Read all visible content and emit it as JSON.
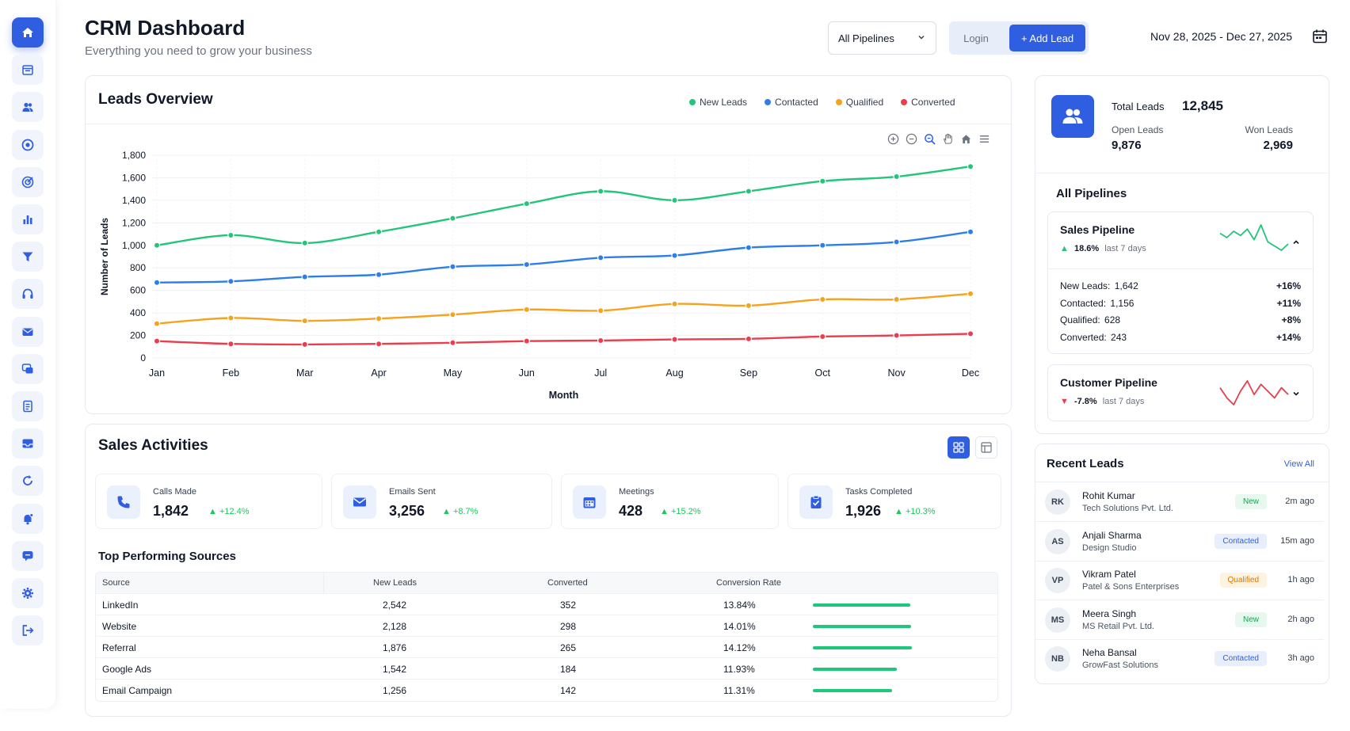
{
  "header": {
    "title": "CRM Dashboard",
    "subtitle": "Everything you need to grow your business",
    "pipeline_select": "All Pipelines",
    "login_label": "Login",
    "add_lead_label": "+ Add Lead",
    "date_range": "Nov 28, 2025 - Dec 27, 2025"
  },
  "sidebar": {
    "items": [
      {
        "icon": "home-icon",
        "active": true
      },
      {
        "icon": "calendar-icon"
      },
      {
        "icon": "users-icon"
      },
      {
        "icon": "target-icon"
      },
      {
        "icon": "goal-icon"
      },
      {
        "icon": "bar-chart-icon"
      },
      {
        "icon": "filter-icon"
      },
      {
        "icon": "support-icon"
      },
      {
        "icon": "mail-icon"
      },
      {
        "icon": "chat-icon"
      },
      {
        "icon": "document-icon"
      },
      {
        "icon": "inbox-icon"
      },
      {
        "icon": "refresh-icon"
      },
      {
        "icon": "notification-icon"
      },
      {
        "icon": "message-icon"
      },
      {
        "icon": "settings-icon"
      },
      {
        "icon": "logout-icon"
      }
    ]
  },
  "leads_overview": {
    "title": "Leads Overview",
    "legend": [
      "New Leads",
      "Contacted",
      "Qualified",
      "Converted"
    ]
  },
  "chart_data": {
    "type": "line",
    "title": "Leads Overview",
    "xlabel": "Month",
    "ylabel": "Number of Leads",
    "categories": [
      "Jan",
      "Feb",
      "Mar",
      "Apr",
      "May",
      "Jun",
      "Jul",
      "Aug",
      "Sep",
      "Oct",
      "Nov",
      "Dec"
    ],
    "yticks": [
      "0",
      "200",
      "400",
      "600",
      "800",
      "1,000",
      "1,200",
      "1,400",
      "1,600",
      "1,800"
    ],
    "ylim": [
      0,
      1800
    ],
    "grid": true,
    "legend_position": "top-right",
    "series": [
      {
        "name": "New Leads",
        "color": "#22c57a",
        "values": [
          1000,
          1090,
          1020,
          1120,
          1240,
          1370,
          1480,
          1400,
          1480,
          1570,
          1610,
          1700
        ]
      },
      {
        "name": "Contacted",
        "color": "#2d7fe8",
        "values": [
          670,
          680,
          720,
          740,
          810,
          830,
          890,
          910,
          980,
          1000,
          1030,
          1120
        ]
      },
      {
        "name": "Qualified",
        "color": "#f5a31f",
        "values": [
          305,
          355,
          330,
          350,
          385,
          430,
          420,
          480,
          465,
          520,
          520,
          570
        ]
      },
      {
        "name": "Converted",
        "color": "#ea3d4d",
        "values": [
          150,
          125,
          120,
          125,
          135,
          150,
          155,
          165,
          170,
          190,
          200,
          215
        ]
      }
    ]
  },
  "sales_activities": {
    "title": "Sales Activities",
    "items": [
      {
        "label": "Calls Made",
        "value": "1,842",
        "change": "+12.4%"
      },
      {
        "label": "Emails Sent",
        "value": "3,256",
        "change": "+8.7%"
      },
      {
        "label": "Meetings",
        "value": "428",
        "change": "+15.2%"
      },
      {
        "label": "Tasks Completed",
        "value": "1,926",
        "change": "+10.3%"
      }
    ]
  },
  "sources": {
    "title": "Top Performing Sources",
    "headers": [
      "Source",
      "New Leads",
      "Converted",
      "Conversion Rate"
    ],
    "rows": [
      {
        "source": "LinkedIn",
        "new_leads": "2,542",
        "converted": "352",
        "rate": "13.84%",
        "pct": 13.84
      },
      {
        "source": "Website",
        "new_leads": "2,128",
        "converted": "298",
        "rate": "14.01%",
        "pct": 14.01
      },
      {
        "source": "Referral",
        "new_leads": "1,876",
        "converted": "265",
        "rate": "14.12%",
        "pct": 14.12
      },
      {
        "source": "Google Ads",
        "new_leads": "1,542",
        "converted": "184",
        "rate": "11.93%",
        "pct": 11.93
      },
      {
        "source": "Email Campaign",
        "new_leads": "1,256",
        "converted": "142",
        "rate": "11.31%",
        "pct": 11.31
      }
    ]
  },
  "stats": {
    "total_label": "Total Leads",
    "total_value": "12,845",
    "open_label": "Open Leads",
    "open_value": "9,876",
    "won_label": "Won Leads",
    "won_value": "2,969"
  },
  "pipelines": {
    "title": "All Pipelines",
    "sales": {
      "name": "Sales Pipeline",
      "change": "18.6%",
      "period": "last 7 days",
      "color": "#22c57a",
      "trend": [
        22,
        18,
        24,
        20,
        26,
        16,
        30,
        14,
        10,
        6,
        12
      ],
      "rows": [
        {
          "label": "New Leads:",
          "value": "1,642",
          "change": "+16%"
        },
        {
          "label": "Contacted:",
          "value": "1,156",
          "change": "+11%"
        },
        {
          "label": "Qualified:",
          "value": "628",
          "change": "+8%"
        },
        {
          "label": "Converted:",
          "value": "243",
          "change": "+14%"
        }
      ]
    },
    "customer": {
      "name": "Customer Pipeline",
      "change": "-7.8%",
      "period": "last 7 days",
      "color": "#ea3d4d",
      "trend": [
        14,
        8,
        4,
        12,
        18,
        10,
        16,
        12,
        8,
        14,
        10
      ]
    }
  },
  "recent_leads": {
    "title": "Recent Leads",
    "view_all": "View All",
    "items": [
      {
        "initials": "RK",
        "name": "Rohit Kumar",
        "company": "Tech Solutions Pvt. Ltd.",
        "status": "New",
        "time": "2m ago"
      },
      {
        "initials": "AS",
        "name": "Anjali Sharma",
        "company": "Design Studio",
        "status": "Contacted",
        "time": "15m ago"
      },
      {
        "initials": "VP",
        "name": "Vikram Patel",
        "company": "Patel & Sons Enterprises",
        "status": "Qualified",
        "time": "1h ago"
      },
      {
        "initials": "MS",
        "name": "Meera Singh",
        "company": "MS Retail Pvt. Ltd.",
        "status": "New",
        "time": "2h ago"
      },
      {
        "initials": "NB",
        "name": "Neha Bansal",
        "company": "GrowFast Solutions",
        "status": "Contacted",
        "time": "3h ago"
      }
    ]
  }
}
